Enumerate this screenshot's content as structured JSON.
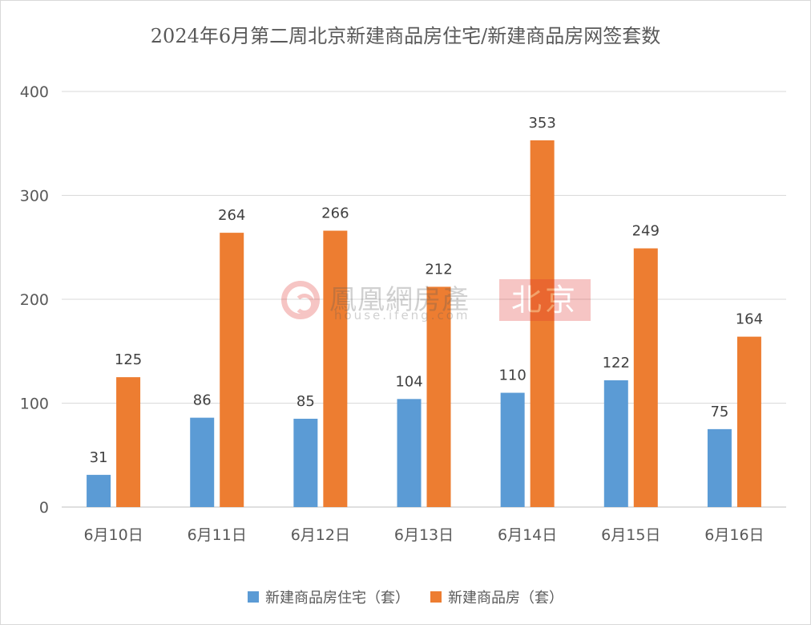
{
  "chart_data": {
    "type": "bar",
    "title": "2024年6月第二周北京新建商品房住宅/新建商品房网签套数",
    "categories": [
      "6月10日",
      "6月11日",
      "6月12日",
      "6月13日",
      "6月14日",
      "6月15日",
      "6月16日"
    ],
    "series": [
      {
        "name": "新建商品房住宅（套）",
        "values": [
          31,
          86,
          85,
          104,
          110,
          122,
          75
        ],
        "color": "#5b9bd5"
      },
      {
        "name": "新建商品房（套）",
        "values": [
          125,
          264,
          266,
          212,
          353,
          249,
          164
        ],
        "color": "#ed7d31"
      }
    ],
    "ylim": [
      0,
      400
    ],
    "yticks": [
      0,
      100,
      200,
      300,
      400
    ],
    "grid": true,
    "legend_position": "bottom",
    "data_labels": true
  },
  "watermark": {
    "brand": "鳳凰網房產",
    "site": "house.ifeng.com",
    "city": "北京"
  }
}
